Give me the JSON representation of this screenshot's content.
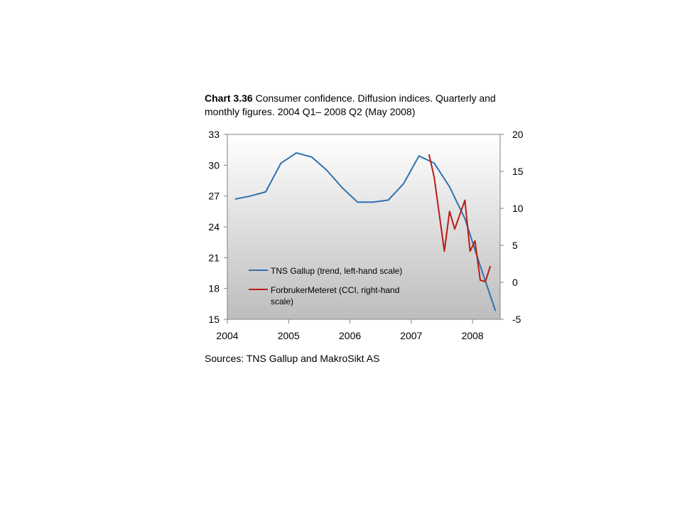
{
  "title": {
    "prefix": "Chart 3.36",
    "text": "Consumer confidence. Diffusion indices. Quarterly and monthly figures. 2004 Q1– 2008 Q2 (May 2008)"
  },
  "source": "Sources: TNS Gallup and MakroSikt AS",
  "chart_data": {
    "type": "line",
    "x_ticks": [
      "2004",
      "2005",
      "2006",
      "2007",
      "2008"
    ],
    "x_range": [
      2004.0,
      2008.45
    ],
    "y_left": {
      "ticks": [
        "33",
        "30",
        "27",
        "24",
        "21",
        "18",
        "15"
      ],
      "range": [
        15,
        33
      ]
    },
    "y_right": {
      "ticks": [
        "20",
        "15",
        "10",
        "5",
        "0",
        "-5"
      ],
      "range": [
        -5,
        20
      ]
    },
    "grid": false,
    "legend_placement": "inside-lower-left",
    "colors": {
      "tns": "#2f72b0",
      "cci": "#b81d13",
      "plot_top": "#ffffff",
      "plot_bottom": "#bdbdbd"
    },
    "series": [
      {
        "name": "TNS Gallup (trend, left-hand scale)",
        "axis": "left",
        "points": [
          [
            2004.125,
            26.7
          ],
          [
            2004.375,
            27.0
          ],
          [
            2004.625,
            27.4
          ],
          [
            2004.875,
            30.2
          ],
          [
            2005.125,
            31.2
          ],
          [
            2005.375,
            30.8
          ],
          [
            2005.625,
            29.5
          ],
          [
            2005.875,
            27.8
          ],
          [
            2006.125,
            26.4
          ],
          [
            2006.375,
            26.4
          ],
          [
            2006.625,
            26.6
          ],
          [
            2006.875,
            28.2
          ],
          [
            2007.125,
            30.9
          ],
          [
            2007.375,
            30.2
          ],
          [
            2007.625,
            27.9
          ],
          [
            2007.875,
            24.8
          ],
          [
            2008.125,
            20.2
          ],
          [
            2008.375,
            15.8
          ]
        ]
      },
      {
        "name": "ForbrukerMeteret (CCI, right-hand scale)",
        "axis": "right",
        "points": [
          [
            2007.29,
            17.3
          ],
          [
            2007.375,
            14.2
          ],
          [
            2007.54,
            4.2
          ],
          [
            2007.625,
            9.6
          ],
          [
            2007.71,
            7.2
          ],
          [
            2007.875,
            11.1
          ],
          [
            2007.96,
            4.2
          ],
          [
            2008.04,
            5.6
          ],
          [
            2008.125,
            0.3
          ],
          [
            2008.21,
            0.1
          ],
          [
            2008.29,
            2.2
          ]
        ]
      }
    ]
  }
}
